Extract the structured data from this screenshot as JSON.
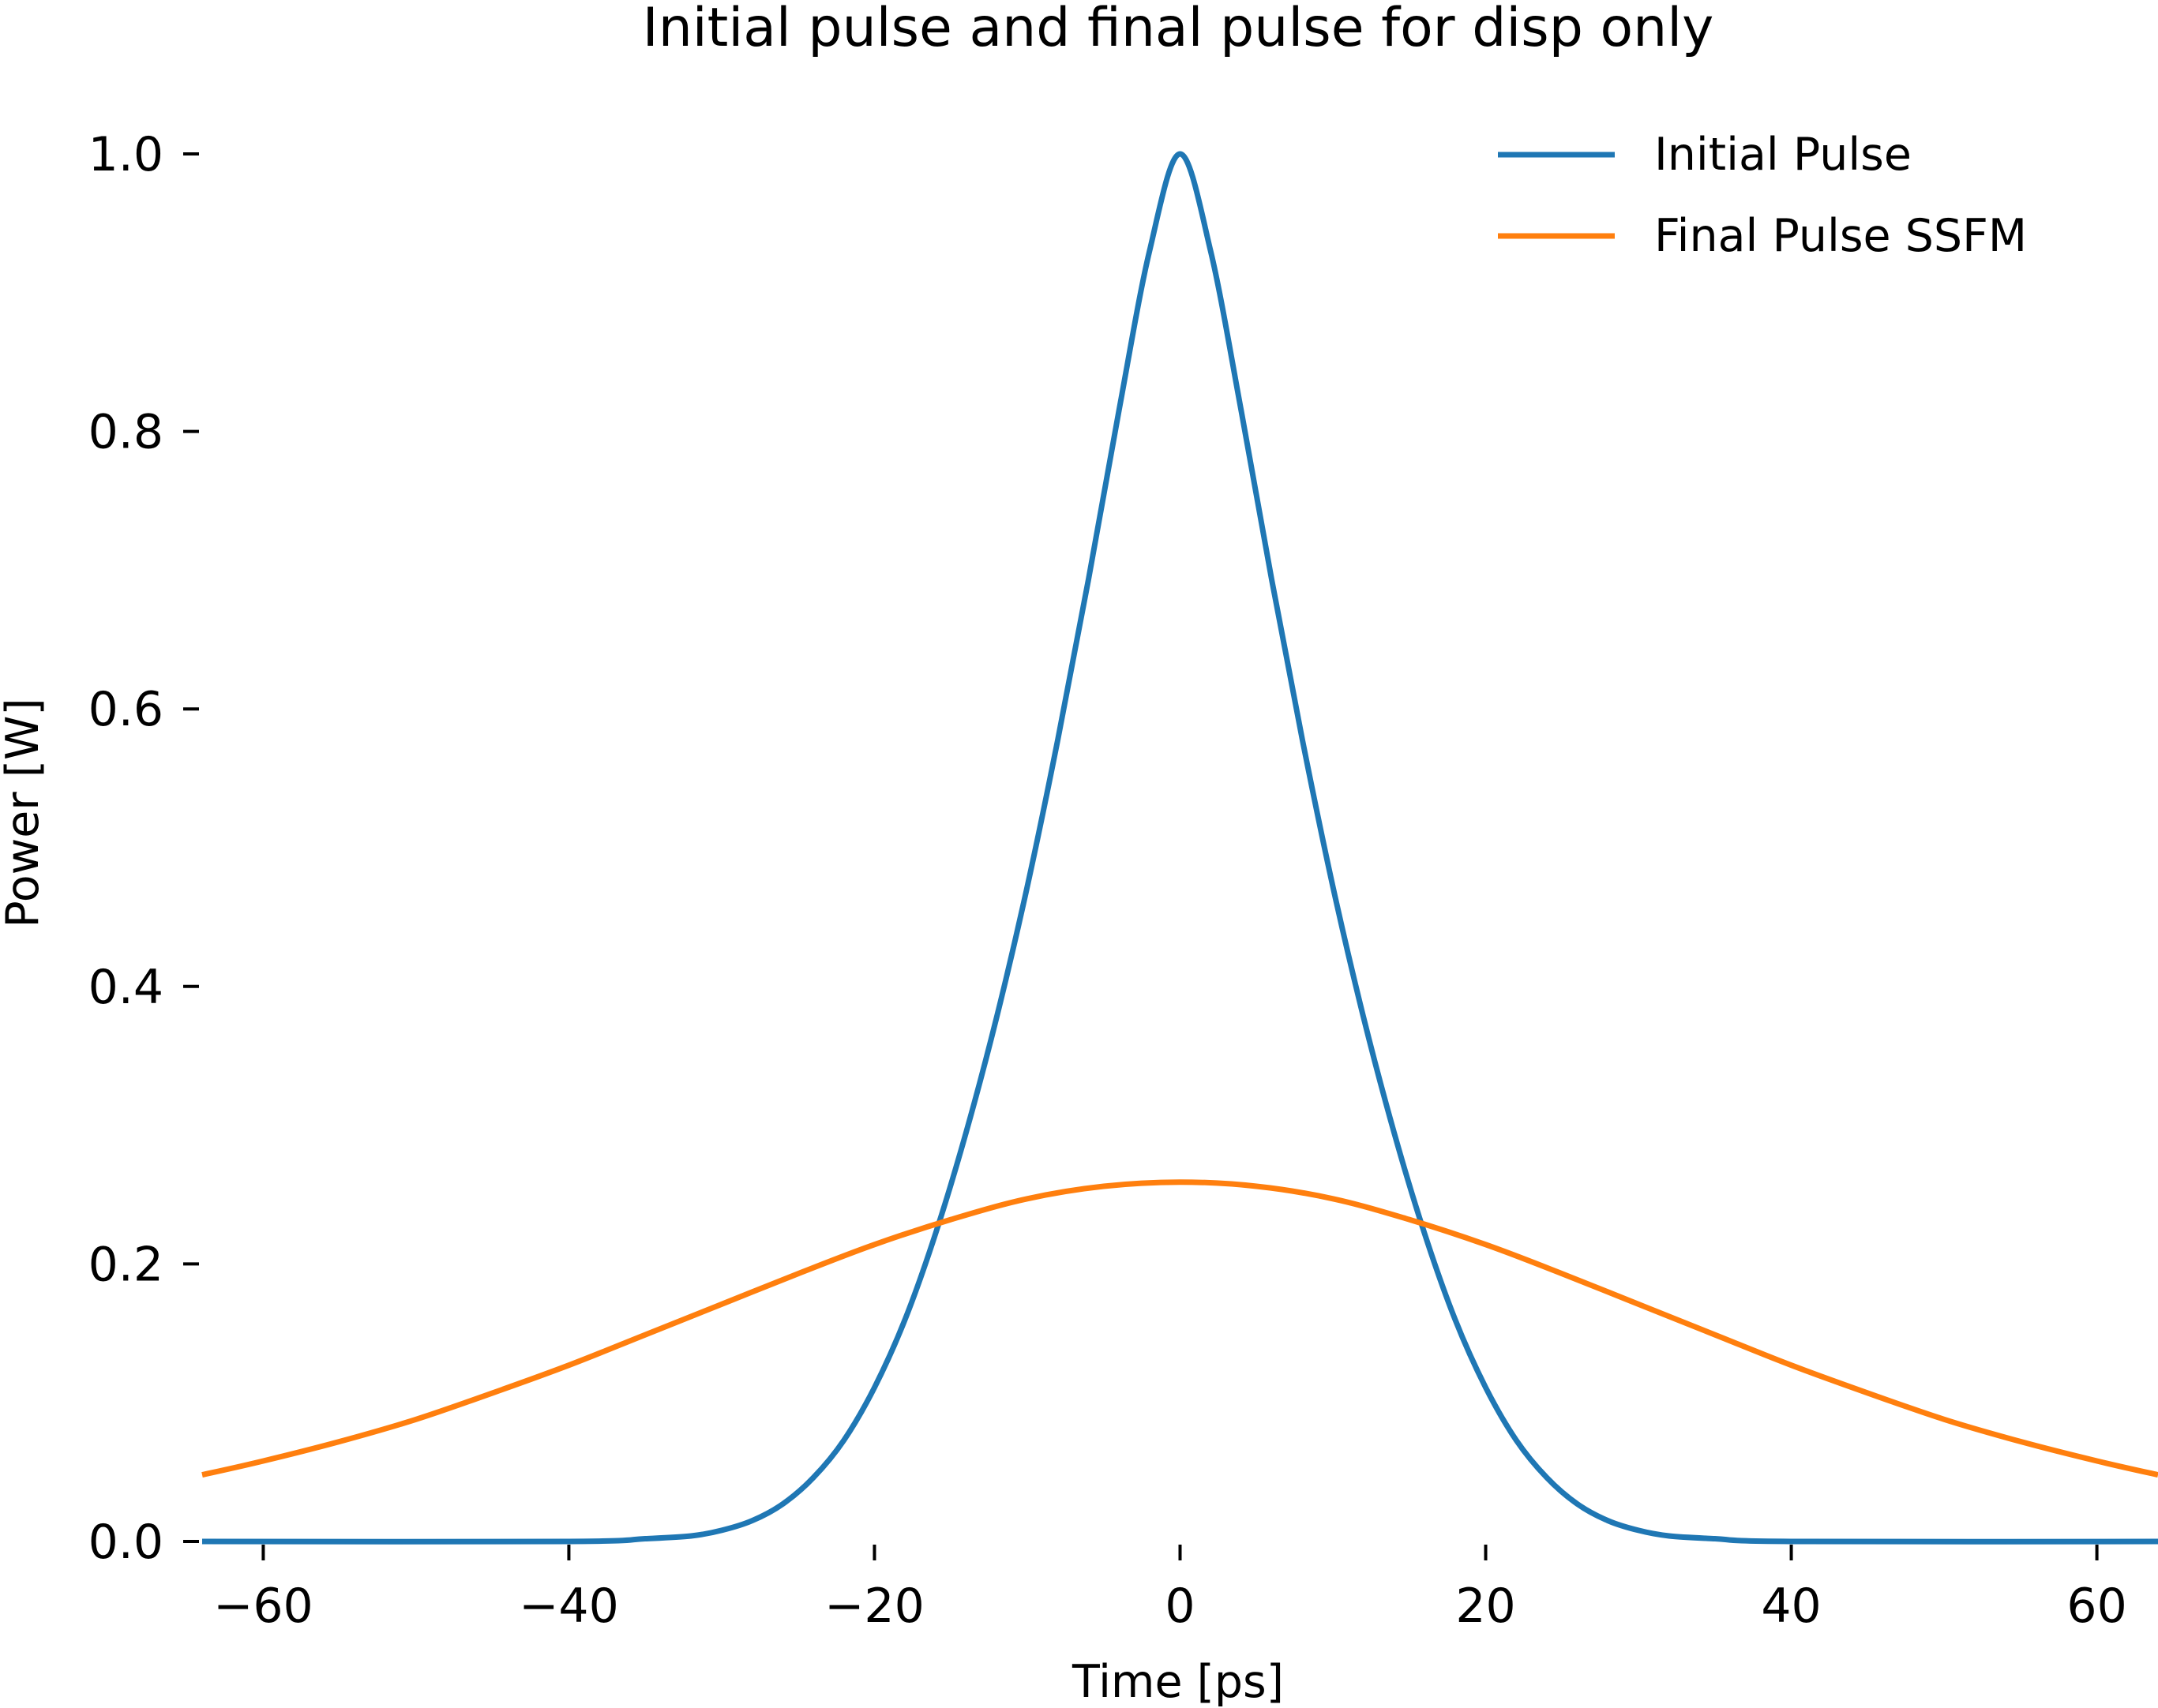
{
  "chart_data": {
    "type": "line",
    "title": "Initial pulse and final pulse for disp only",
    "xlabel": "Time [ps]",
    "ylabel": "Power [W]",
    "xlim": [
      -64,
      64
    ],
    "ylim": [
      0.0,
      1.0
    ],
    "xticks": [
      -60,
      -40,
      -20,
      0,
      20,
      40,
      60
    ],
    "xtick_labels": [
      "−60",
      "−40",
      "−20",
      "0",
      "20",
      "40",
      "60"
    ],
    "yticks": [
      0.0,
      0.2,
      0.4,
      0.6,
      0.8,
      1.0
    ],
    "ytick_labels": [
      "0.0",
      "0.2",
      "0.4",
      "0.6",
      "0.8",
      "1.0"
    ],
    "grid": false,
    "legend_position": "top-right",
    "series": [
      {
        "name": "Initial Pulse",
        "color": "#1f77b4",
        "x": [
          -64,
          -40,
          -35,
          -32,
          -30,
          -28,
          -26,
          -24,
          -22,
          -20,
          -18,
          -16,
          -14,
          -12,
          -10,
          -8,
          -6,
          -4,
          -2,
          0,
          2,
          4,
          6,
          8,
          10,
          12,
          14,
          16,
          18,
          20,
          22,
          24,
          26,
          28,
          30,
          32,
          35,
          40,
          64
        ],
        "y": [
          0.0,
          0.0,
          0.002,
          0.004,
          0.008,
          0.015,
          0.027,
          0.046,
          0.073,
          0.111,
          0.16,
          0.222,
          0.295,
          0.378,
          0.472,
          0.578,
          0.693,
          0.815,
          0.93,
          1.0,
          0.93,
          0.815,
          0.693,
          0.578,
          0.472,
          0.378,
          0.295,
          0.222,
          0.16,
          0.111,
          0.073,
          0.046,
          0.027,
          0.015,
          0.008,
          0.004,
          0.002,
          0.0,
          0.0
        ]
      },
      {
        "name": "Final Pulse SSFM",
        "color": "#ff7f0e",
        "x": [
          -64,
          -60,
          -55,
          -50,
          -45,
          -40,
          -35,
          -30,
          -25,
          -20,
          -15,
          -10,
          -5,
          0,
          5,
          10,
          15,
          20,
          25,
          30,
          35,
          40,
          45,
          50,
          55,
          60,
          64
        ],
        "y": [
          0.048,
          0.058,
          0.072,
          0.088,
          0.107,
          0.127,
          0.149,
          0.171,
          0.193,
          0.214,
          0.232,
          0.247,
          0.256,
          0.259,
          0.256,
          0.247,
          0.232,
          0.214,
          0.193,
          0.171,
          0.149,
          0.127,
          0.107,
          0.088,
          0.072,
          0.058,
          0.048
        ]
      }
    ]
  }
}
